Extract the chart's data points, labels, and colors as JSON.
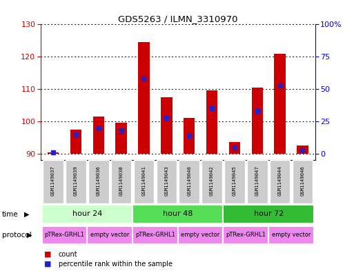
{
  "title": "GDS5263 / ILMN_3310970",
  "samples": [
    "GSM1149037",
    "GSM1149039",
    "GSM1149036",
    "GSM1149038",
    "GSM1149041",
    "GSM1149043",
    "GSM1149040",
    "GSM1149042",
    "GSM1149045",
    "GSM1149047",
    "GSM1149044",
    "GSM1149046"
  ],
  "count_values": [
    90.5,
    97.5,
    101.5,
    99.5,
    124.5,
    107.5,
    101.0,
    109.5,
    93.5,
    110.5,
    121.0,
    92.5
  ],
  "percentile_values": [
    1.0,
    15.0,
    20.0,
    18.0,
    58.0,
    28.0,
    14.0,
    35.0,
    5.0,
    33.0,
    53.0,
    3.0
  ],
  "ylim_left": [
    88,
    130
  ],
  "ylim_right": [
    -4.8,
    100
  ],
  "yticks_left": [
    90,
    100,
    110,
    120,
    130
  ],
  "yticks_right": [
    0,
    25,
    50,
    75,
    100
  ],
  "yticklabels_right": [
    "0",
    "25",
    "50",
    "75",
    "100%"
  ],
  "bar_bottom": 90,
  "bar_color": "#cc0000",
  "blue_color": "#2222cc",
  "grid_color": "#000000",
  "time_groups": [
    {
      "label": "hour 24",
      "start": 0,
      "end": 3
    },
    {
      "label": "hour 48",
      "start": 4,
      "end": 7
    },
    {
      "label": "hour 72",
      "start": 8,
      "end": 11
    }
  ],
  "time_colors": [
    "#ccffcc",
    "#55dd55",
    "#33bb33"
  ],
  "protocol_groups": [
    {
      "label": "pTRex-GRHL1",
      "start": 0,
      "end": 1
    },
    {
      "label": "empty vector",
      "start": 2,
      "end": 3
    },
    {
      "label": "pTRex-GRHL1",
      "start": 4,
      "end": 5
    },
    {
      "label": "empty vector",
      "start": 6,
      "end": 7
    },
    {
      "label": "pTRex-GRHL1",
      "start": 8,
      "end": 9
    },
    {
      "label": "empty vector",
      "start": 10,
      "end": 11
    }
  ],
  "prot_color": "#ee88ee",
  "left_axis_color": "#cc0000",
  "right_axis_color": "#0000cc",
  "bg_color": "#ffffff"
}
